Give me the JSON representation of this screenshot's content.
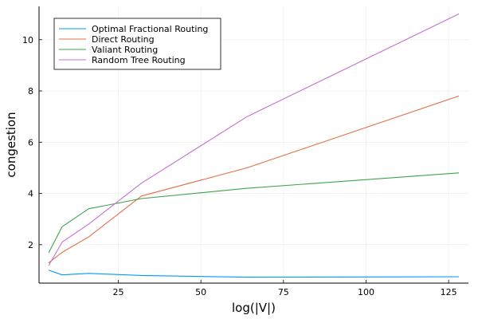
{
  "chart_data": {
    "type": "line",
    "title": "",
    "xlabel": "log(|V|)",
    "ylabel": "congestion",
    "xlim": [
      1,
      131
    ],
    "ylim": [
      0.5,
      11.3
    ],
    "xticks": [
      25,
      50,
      75,
      100,
      125
    ],
    "yticks": [
      2,
      4,
      6,
      8,
      10
    ],
    "grid": true,
    "legend_position": "top-left",
    "series": [
      {
        "name": "Optimal Fractional Routing",
        "color": "#009AFA",
        "x": [
          4,
          8,
          16,
          32,
          64,
          128
        ],
        "y": [
          1.0,
          0.82,
          0.88,
          0.8,
          0.73,
          0.75
        ]
      },
      {
        "name": "Direct Routing",
        "color": "#E36F47",
        "x": [
          4,
          8,
          16,
          32,
          64,
          128
        ],
        "y": [
          1.3,
          1.7,
          2.3,
          3.9,
          5.0,
          7.8
        ]
      },
      {
        "name": "Valiant Routing",
        "color": "#3EA44E",
        "x": [
          4,
          8,
          16,
          32,
          64,
          128
        ],
        "y": [
          1.7,
          2.7,
          3.4,
          3.8,
          4.2,
          4.8
        ]
      },
      {
        "name": "Random Tree Routing",
        "color": "#C371D2",
        "x": [
          4,
          8,
          16,
          32,
          64,
          128
        ],
        "y": [
          1.2,
          2.1,
          2.8,
          4.4,
          7.0,
          11.0
        ]
      }
    ]
  }
}
